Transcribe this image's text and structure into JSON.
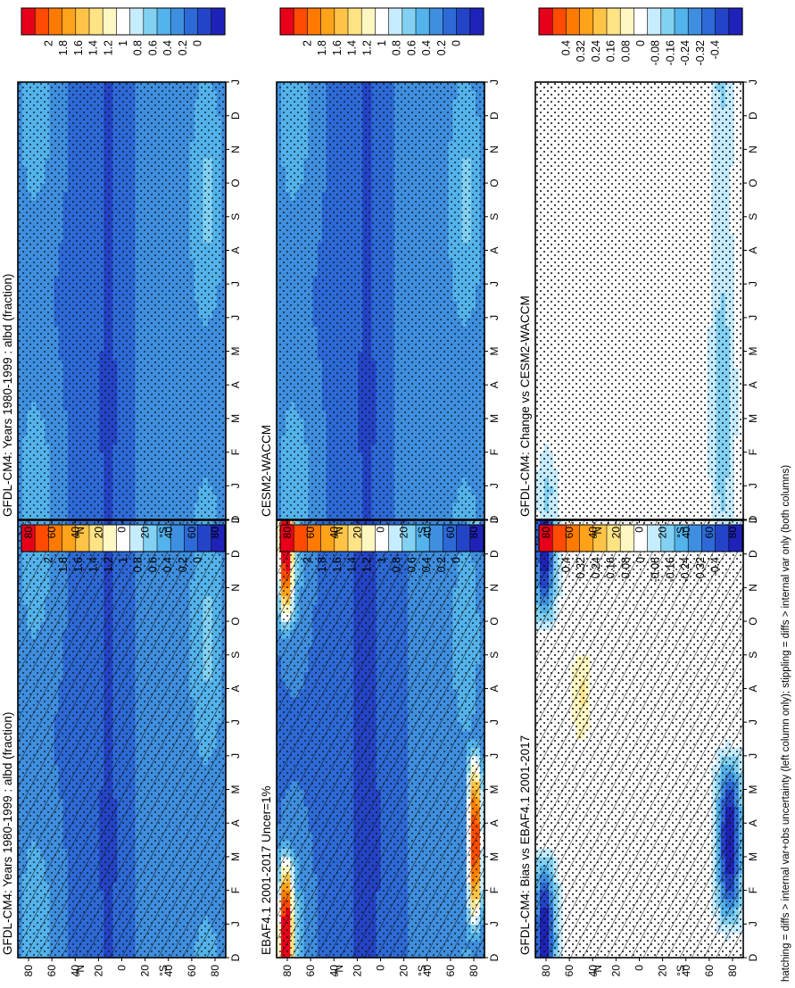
{
  "chart_data": [
    {
      "type": "heatmap",
      "title": "GFDL-CM4: Years 1980-1999 : albd (fraction)",
      "x_ticks": [
        "D",
        "J",
        "F",
        "M",
        "A",
        "M",
        "J",
        "J",
        "A",
        "S",
        "O",
        "N",
        "D",
        "J"
      ],
      "y_ticks": [
        "80",
        "60",
        "40",
        "20",
        "0",
        "20",
        "40",
        "60",
        "80"
      ],
      "y_hemi": [
        "N",
        "S"
      ],
      "colorbar": {
        "labels": [
          "2",
          "1.8",
          "1.6",
          "1.4",
          "1.2",
          "1",
          "0.8",
          "0.6",
          "0.4",
          "0.2",
          "0"
        ],
        "colors": [
          "#e8001a",
          "#ff4b00",
          "#ff7a00",
          "#ffa31a",
          "#ffc447",
          "#ffe385",
          "#fff7c2",
          "#ffffff",
          "#c6ecff",
          "#82d1f2",
          "#53b3ec",
          "#3f8fe0",
          "#2d6ad8",
          "#2444c8",
          "#1f22b8"
        ]
      },
      "marks": "hatch-stipple",
      "field": "fraction"
    },
    {
      "type": "heatmap",
      "title": "GFDL-CM4: Years 1980-1999 : albd (fraction)",
      "x_ticks": [
        "D",
        "J",
        "F",
        "M",
        "A",
        "M",
        "J",
        "J",
        "A",
        "S",
        "O",
        "N",
        "D",
        "J"
      ],
      "y_ticks": [
        "80",
        "60",
        "40",
        "20",
        "0",
        "20",
        "40",
        "60",
        "80"
      ],
      "y_hemi": [
        "N",
        "S"
      ],
      "colorbar": {
        "labels": [
          "2",
          "1.8",
          "1.6",
          "1.4",
          "1.2",
          "1",
          "0.8",
          "0.6",
          "0.4",
          "0.2",
          "0"
        ],
        "colors": [
          "#e8001a",
          "#ff4b00",
          "#ff7a00",
          "#ffa31a",
          "#ffc447",
          "#ffe385",
          "#fff7c2",
          "#ffffff",
          "#c6ecff",
          "#82d1f2",
          "#53b3ec",
          "#3f8fe0",
          "#2d6ad8",
          "#2444c8",
          "#1f22b8"
        ]
      },
      "marks": "stipple",
      "field": "fraction"
    },
    {
      "type": "heatmap",
      "title": "EBAF4.1 2001-2017 Uncer=1%",
      "x_ticks": [
        "D",
        "J",
        "F",
        "M",
        "A",
        "M",
        "J",
        "J",
        "A",
        "S",
        "O",
        "N",
        "D",
        "J"
      ],
      "y_ticks": [
        "80",
        "60",
        "40",
        "20",
        "0",
        "20",
        "40",
        "60",
        "80"
      ],
      "y_hemi": [
        "N",
        "S"
      ],
      "colorbar": {
        "labels": [
          "2",
          "1.8",
          "1.6",
          "1.4",
          "1.2",
          "1",
          "0.8",
          "0.6",
          "0.4",
          "0.2",
          "0"
        ],
        "colors": [
          "#e8001a",
          "#ff4b00",
          "#ff7a00",
          "#ffa31a",
          "#ffc447",
          "#ffe385",
          "#fff7c2",
          "#ffffff",
          "#c6ecff",
          "#82d1f2",
          "#53b3ec",
          "#3f8fe0",
          "#2d6ad8",
          "#2444c8",
          "#1f22b8"
        ]
      },
      "marks": "hatch-stipple",
      "field": "obs"
    },
    {
      "type": "heatmap",
      "title": "CESM2-WACCM",
      "x_ticks": [
        "D",
        "J",
        "F",
        "M",
        "A",
        "M",
        "J",
        "J",
        "A",
        "S",
        "O",
        "N",
        "D",
        "J"
      ],
      "y_ticks": [
        "80",
        "60",
        "40",
        "20",
        "0",
        "20",
        "40",
        "60",
        "80"
      ],
      "y_hemi": [
        "N",
        "S"
      ],
      "colorbar": {
        "labels": [
          "2",
          "1.8",
          "1.6",
          "1.4",
          "1.2",
          "1",
          "0.8",
          "0.6",
          "0.4",
          "0.2",
          "0"
        ],
        "colors": [
          "#e8001a",
          "#ff4b00",
          "#ff7a00",
          "#ffa31a",
          "#ffc447",
          "#ffe385",
          "#fff7c2",
          "#ffffff",
          "#c6ecff",
          "#82d1f2",
          "#53b3ec",
          "#3f8fe0",
          "#2d6ad8",
          "#2444c8",
          "#1f22b8"
        ]
      },
      "marks": "stipple",
      "field": "fraction"
    },
    {
      "type": "heatmap",
      "title": "GFDL-CM4: Bias vs EBAF4.1 2001-2017",
      "x_ticks": [
        "D",
        "J",
        "F",
        "M",
        "A",
        "M",
        "J",
        "J",
        "A",
        "S",
        "O",
        "N",
        "D",
        "J"
      ],
      "y_ticks": [
        "80",
        "60",
        "40",
        "20",
        "0",
        "20",
        "40",
        "60",
        "80"
      ],
      "y_hemi": [
        "N",
        "S"
      ],
      "colorbar": {
        "labels": [
          "0.4",
          "0.32",
          "0.24",
          "0.16",
          "0.08",
          "0",
          "-0.08",
          "-0.16",
          "-0.24",
          "-0.32",
          "-0.4"
        ],
        "colors": [
          "#e8001a",
          "#ff4b00",
          "#ff7a00",
          "#ffa31a",
          "#ffc447",
          "#ffe385",
          "#fff7c2",
          "#ffffff",
          "#c6ecff",
          "#82d1f2",
          "#53b3ec",
          "#3f8fe0",
          "#2d6ad8",
          "#2444c8",
          "#1f22b8"
        ]
      },
      "marks": "hatch-stipple",
      "field": "bias"
    },
    {
      "type": "heatmap",
      "title": "GFDL-CM4: Change vs CESM2-WACCM",
      "x_ticks": [
        "D",
        "J",
        "F",
        "M",
        "A",
        "M",
        "J",
        "J",
        "A",
        "S",
        "O",
        "N",
        "D",
        "J"
      ],
      "y_ticks": [
        "80",
        "60",
        "40",
        "20",
        "0",
        "20",
        "40",
        "60",
        "80"
      ],
      "y_hemi": [
        "N",
        "S"
      ],
      "colorbar": {
        "labels": [
          "0.4",
          "0.32",
          "0.24",
          "0.16",
          "0.08",
          "0",
          "-0.08",
          "-0.16",
          "-0.24",
          "-0.32",
          "-0.4"
        ],
        "colors": [
          "#e8001a",
          "#ff4b00",
          "#ff7a00",
          "#ffa31a",
          "#ffc447",
          "#ffe385",
          "#fff7c2",
          "#ffffff",
          "#c6ecff",
          "#82d1f2",
          "#53b3ec",
          "#3f8fe0",
          "#2d6ad8",
          "#2444c8",
          "#1f22b8"
        ]
      },
      "marks": "stipple",
      "field": "change"
    }
  ],
  "footnote": "hatching = diffs > internal var+obs uncertainty (left column only); stippling = diffs > internal var only (both columns)"
}
